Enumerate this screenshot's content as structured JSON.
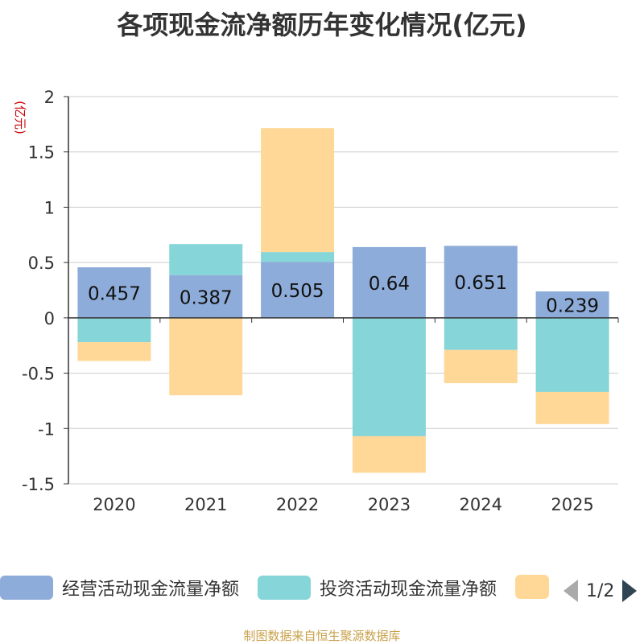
{
  "chart_data": {
    "type": "bar",
    "stacked": true,
    "title": "各项现金流净额历年变化情况(亿元)",
    "ylabel": "(亿元)",
    "categories": [
      "2020",
      "2021",
      "2022",
      "2023",
      "2024",
      "2025"
    ],
    "ylim": [
      -1.5,
      2
    ],
    "yticks": [
      2,
      1.5,
      1,
      0.5,
      0,
      -0.5,
      -1,
      -1.5
    ],
    "ytick_labels": [
      "2",
      "1.5",
      "1",
      "0.5",
      "0",
      "-0.5",
      "-1",
      "-1.5"
    ],
    "series": [
      {
        "name": "经营活动现金流量净额",
        "color": "#8eacd9",
        "values": [
          0.457,
          0.387,
          0.505,
          0.64,
          0.651,
          0.239
        ],
        "labels": [
          "0.457",
          "0.387",
          "0.505",
          "0.64",
          "0.651",
          "0.239"
        ]
      },
      {
        "name": "投资活动现金流量净额",
        "color": "#86d5d8",
        "values": [
          -0.22,
          0.28,
          0.09,
          -1.07,
          -0.29,
          -0.67
        ]
      },
      {
        "name": "",
        "color": "#ffd898",
        "values": [
          -0.17,
          -0.7,
          1.12,
          -0.33,
          -0.3,
          -0.29
        ]
      }
    ],
    "legend_position": "bottom"
  },
  "legend": {
    "items": [
      {
        "label": "经营活动现金流量净额"
      },
      {
        "label": "投资活动现金流量净额"
      }
    ],
    "page_indicator": "1/2"
  },
  "source": "制图数据来自恒生聚源数据库"
}
